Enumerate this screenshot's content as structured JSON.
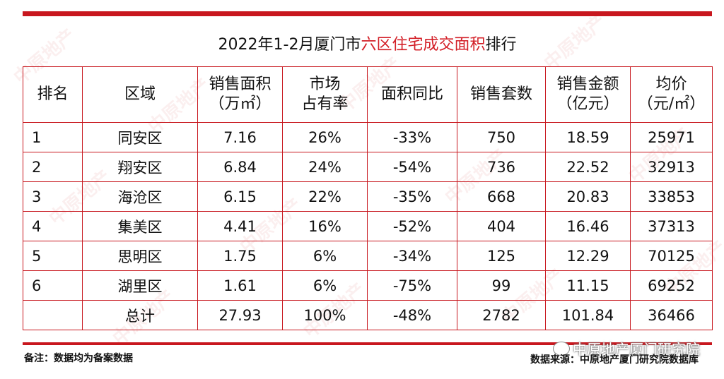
{
  "title": {
    "prefix": "2022年1-2月厦门市",
    "highlight": "六区住宅成交面积",
    "suffix": "排行"
  },
  "headers": [
    [
      "排名"
    ],
    [
      "区域"
    ],
    [
      "销售面积",
      "（万㎡）"
    ],
    [
      "市场",
      "占有率"
    ],
    [
      "面积同比"
    ],
    [
      "销售套数"
    ],
    [
      "销售金额",
      "（亿元）"
    ],
    [
      "均价",
      "（元/㎡）"
    ]
  ],
  "rows": [
    [
      "1",
      "同安区",
      "7.16",
      "26%",
      "-33%",
      "750",
      "18.59",
      "25971"
    ],
    [
      "2",
      "翔安区",
      "6.84",
      "24%",
      "-54%",
      "736",
      "22.52",
      "32913"
    ],
    [
      "3",
      "海沧区",
      "6.15",
      "22%",
      "-35%",
      "668",
      "20.83",
      "33853"
    ],
    [
      "4",
      "集美区",
      "4.41",
      "16%",
      "-52%",
      "404",
      "16.46",
      "37313"
    ],
    [
      "5",
      "思明区",
      "1.75",
      "6%",
      "-34%",
      "125",
      "12.29",
      "70125"
    ],
    [
      "6",
      "湖里区",
      "1.61",
      "6%",
      "-75%",
      "99",
      "11.15",
      "69252"
    ],
    [
      "",
      "总计",
      "27.93",
      "100%",
      "-48%",
      "2782",
      "101.84",
      "36466"
    ]
  ],
  "footer": {
    "note": "备注：数据均为备案数据",
    "source": "数据来源：中原地产厦门研究院数据库",
    "wechat_label": "中原地产厦门研究院"
  },
  "watermark_text": "中原地产",
  "colors": {
    "accent": "#c8171e",
    "highlight": "#d31f27"
  }
}
